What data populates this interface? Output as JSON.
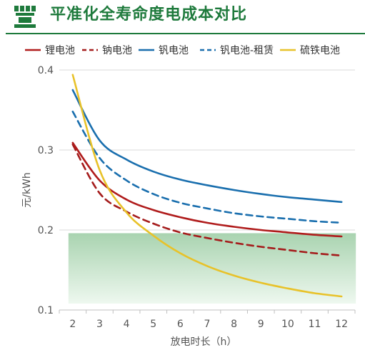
{
  "header": {
    "title": "平准化全寿命度电成本对比"
  },
  "colors": {
    "brand_green": "#1e7a3c",
    "band_top": "#a9d3b0",
    "band_bottom": "#eef8ef"
  },
  "chart_data": {
    "type": "line",
    "title": "平准化全寿命度电成本对比",
    "xlabel": "放电时长（h）",
    "ylabel": "元/kWh",
    "x": [
      2,
      3,
      4,
      5,
      6,
      7,
      8,
      9,
      10,
      11,
      12
    ],
    "xlim": [
      1.5,
      12.5
    ],
    "ylim": [
      0.1,
      0.4
    ],
    "yticks": [
      0.1,
      0.2,
      0.3,
      0.4
    ],
    "ytick_labels": [
      "0.1",
      "0.2",
      "0.3",
      "0.4"
    ],
    "grid": true,
    "legend_position": "top",
    "highlight_band": {
      "y_from": 0.108,
      "y_to": 0.196
    },
    "series": [
      {
        "name": "锂电池",
        "color": "#b01c1c",
        "dash": "solid",
        "values": [
          0.309,
          0.262,
          0.238,
          0.225,
          0.216,
          0.209,
          0.204,
          0.2,
          0.197,
          0.194,
          0.192
        ]
      },
      {
        "name": "钠电池",
        "color": "#a51c1c",
        "dash": "dashed",
        "values": [
          0.307,
          0.246,
          0.223,
          0.208,
          0.197,
          0.19,
          0.184,
          0.179,
          0.175,
          0.171,
          0.168
        ]
      },
      {
        "name": "钒电池",
        "color": "#1a6fae",
        "dash": "solid",
        "values": [
          0.375,
          0.312,
          0.288,
          0.273,
          0.263,
          0.256,
          0.25,
          0.245,
          0.241,
          0.238,
          0.235
        ]
      },
      {
        "name": "钒电池-租赁",
        "color": "#1a6fae",
        "dash": "dashed",
        "values": [
          0.348,
          0.29,
          0.262,
          0.245,
          0.234,
          0.227,
          0.221,
          0.217,
          0.214,
          0.211,
          0.209
        ]
      },
      {
        "name": "硫铁电池",
        "color": "#e8c22a",
        "dash": "solid",
        "values": [
          0.394,
          0.275,
          0.222,
          0.193,
          0.171,
          0.155,
          0.143,
          0.134,
          0.127,
          0.121,
          0.117
        ]
      }
    ]
  }
}
